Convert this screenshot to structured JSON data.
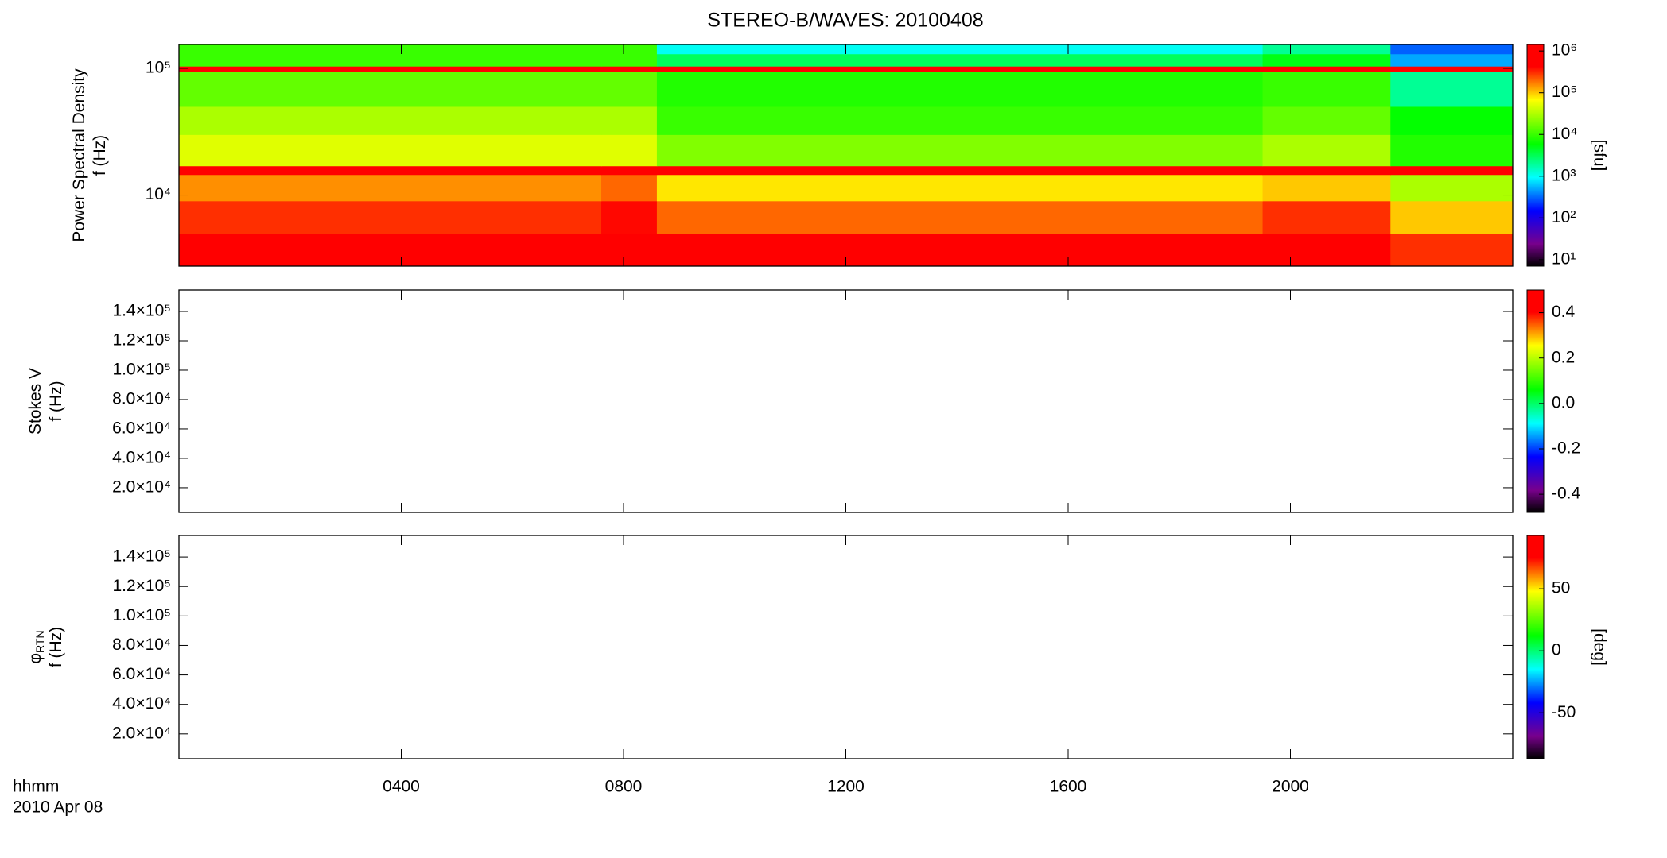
{
  "chart_data": [
    {
      "type": "heatmap",
      "title": "STEREO-B/WAVES: 20100408",
      "ylabel": [
        "Power Spectral Density",
        "f (Hz)"
      ],
      "log_y": true,
      "xlim": [
        0,
        24
      ],
      "ylim": [
        2750,
        154000
      ],
      "yticks": [
        {
          "value": 10000,
          "label": "10⁴"
        },
        {
          "value": 100000,
          "label": "10⁵"
        }
      ],
      "x_edges": [
        0,
        7.6,
        8.6,
        19.5,
        21.8,
        24
      ],
      "y_edges": [
        2750,
        5000,
        9000,
        14500,
        17000,
        30000,
        50000,
        95000,
        104000,
        130000,
        154000
      ],
      "z": [
        [
          1000000,
          1000000,
          500000,
          1000000,
          300000
        ],
        [
          300000,
          400000,
          200000,
          300000,
          100000
        ],
        [
          150000,
          200000,
          80000,
          100000,
          30000
        ],
        [
          1000000,
          1000000,
          1000000,
          1000000,
          1000000
        ],
        [
          50000,
          50000,
          20000,
          30000,
          8000
        ],
        [
          30000,
          30000,
          10000,
          15000,
          6000
        ],
        [
          15000,
          15000,
          8000,
          10000,
          2000
        ],
        [
          1000000,
          1000000,
          1000000,
          1000000,
          1000000
        ],
        [
          10000,
          10000,
          3000,
          5000,
          500
        ],
        [
          10000,
          10000,
          1000,
          2000,
          300
        ]
      ],
      "clim": [
        7,
        1430000
      ],
      "log_c": true,
      "cticks": [
        {
          "value": 10,
          "label": "10¹"
        },
        {
          "value": 100,
          "label": "10²"
        },
        {
          "value": 1000,
          "label": "10³"
        },
        {
          "value": 10000,
          "label": "10⁴"
        },
        {
          "value": 100000,
          "label": "10⁵"
        },
        {
          "value": 1000000,
          "label": "10⁶"
        }
      ],
      "clabel": "[sfu]"
    },
    {
      "type": "heatmap",
      "ylabel": [
        "Stokes V",
        "f (Hz)"
      ],
      "xlim": [
        0,
        24
      ],
      "ylim": [
        3200,
        154600
      ],
      "yticks": [
        {
          "value": 20000,
          "label": "2.0×10⁴"
        },
        {
          "value": 40000,
          "label": "4.0×10⁴"
        },
        {
          "value": 60000,
          "label": "6.0×10⁴"
        },
        {
          "value": 80000,
          "label": "8.0×10⁴"
        },
        {
          "value": 100000,
          "label": "1.0×10⁵"
        },
        {
          "value": 120000,
          "label": "1.2×10⁵"
        },
        {
          "value": 140000,
          "label": "1.4×10⁵"
        }
      ],
      "clim": [
        -0.48,
        0.5
      ],
      "cticks": [
        -0.4,
        -0.2,
        {
          "value": 0,
          "label": "0.0"
        },
        0.2,
        0.4
      ]
    },
    {
      "type": "heatmap",
      "ylabel": [
        "φ",
        "f (Hz)"
      ],
      "ylabel_subscript": "RTN",
      "xlim": [
        0,
        24
      ],
      "ylim": [
        3200,
        154600
      ],
      "yticks": [
        {
          "value": 20000,
          "label": "2.0×10⁴"
        },
        {
          "value": 40000,
          "label": "4.0×10⁴"
        },
        {
          "value": 60000,
          "label": "6.0×10⁴"
        },
        {
          "value": 80000,
          "label": "8.0×10⁴"
        },
        {
          "value": 100000,
          "label": "1.0×10⁵"
        },
        {
          "value": 120000,
          "label": "1.2×10⁵"
        },
        {
          "value": 140000,
          "label": "1.4×10⁵"
        }
      ],
      "xticks": [
        {
          "value": 4,
          "label": "0400"
        },
        {
          "value": 8,
          "label": "0800"
        },
        {
          "value": 12,
          "label": "1200"
        },
        {
          "value": 16,
          "label": "1600"
        },
        {
          "value": 20,
          "label": "2000"
        }
      ],
      "x_label_lines": [
        "hhmm",
        "2010 Apr 08"
      ],
      "clim": [
        -87,
        93
      ],
      "cticks": [
        -50,
        0,
        50
      ],
      "clabel": "[deg]"
    }
  ]
}
